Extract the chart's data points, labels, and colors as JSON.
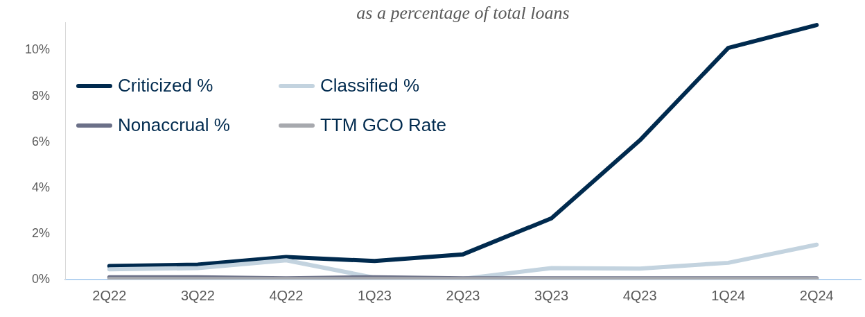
{
  "chart_data": {
    "type": "line",
    "title": "as a percentage of total loans",
    "categories": [
      "2Q22",
      "3Q22",
      "4Q22",
      "1Q23",
      "2Q23",
      "3Q23",
      "4Q23",
      "1Q24",
      "2Q24"
    ],
    "series": [
      {
        "name": "Criticized %",
        "color": "#002a4e",
        "values": [
          0.59,
          0.65,
          0.98,
          0.81,
          1.1,
          2.67,
          6.07,
          10.1,
          11.1
        ]
      },
      {
        "name": "Classified %",
        "color": "#c3d3df",
        "values": [
          0.45,
          0.5,
          0.84,
          0.08,
          0.03,
          0.5,
          0.48,
          0.73,
          1.52
        ]
      },
      {
        "name": "Nonaccrual %",
        "color": "#6b7088",
        "values": [
          0.1,
          0.1,
          0.05,
          0.1,
          0.05,
          0.05,
          0.05,
          0.05,
          0.05
        ]
      },
      {
        "name": "TTM GCO Rate",
        "color": "#a7a9ae",
        "values": [
          0.02,
          0.02,
          0.02,
          0.02,
          0.02,
          0.02,
          0.02,
          0.02,
          0.02
        ]
      }
    ],
    "ylim": [
      0,
      11.2
    ],
    "yticks": [
      {
        "value": 0,
        "label": "0%"
      },
      {
        "value": 2,
        "label": "2%"
      },
      {
        "value": 4,
        "label": "4%"
      },
      {
        "value": 6,
        "label": "6%"
      },
      {
        "value": 8,
        "label": "8%"
      },
      {
        "value": 10,
        "label": "10%"
      }
    ],
    "grid": false,
    "legend": "top left",
    "marker": "none",
    "line_style": "solid"
  }
}
